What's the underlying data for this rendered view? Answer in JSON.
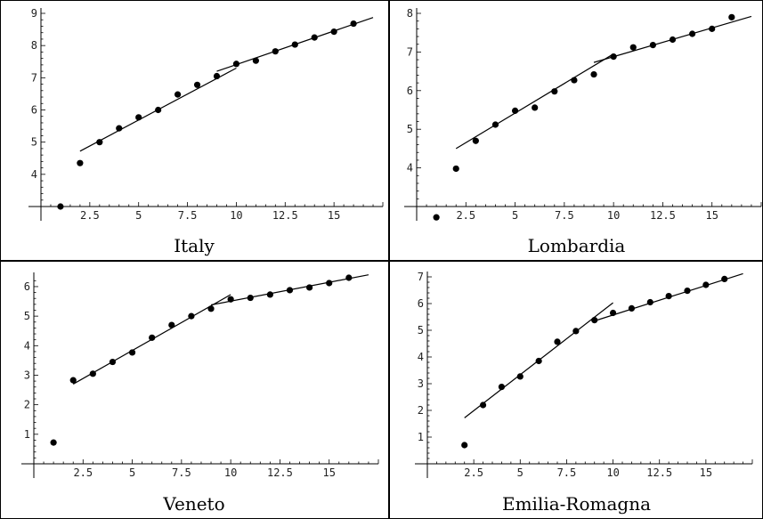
{
  "chart_data": [
    {
      "type": "scatter",
      "title": "Italy",
      "xlim": [
        0,
        17.5
      ],
      "ylim": [
        3,
        9
      ],
      "x_ticks": [
        2.5,
        5,
        7.5,
        10,
        12.5,
        15
      ],
      "x_tick_labels": [
        "2.5",
        "5",
        "7.5",
        "10",
        "12.5",
        "15"
      ],
      "y_ticks": [
        4,
        5,
        6,
        7,
        8,
        9
      ],
      "y_tick_labels": [
        "4",
        "5",
        "6",
        "7",
        "8",
        "9"
      ],
      "x_axis_crosses_at_y": 3,
      "y_axis_at_x": 0,
      "points": [
        [
          1,
          3
        ],
        [
          2,
          4.35
        ],
        [
          3,
          5.0
        ],
        [
          4,
          5.43
        ],
        [
          5,
          5.77
        ],
        [
          6,
          6.0
        ],
        [
          7,
          6.48
        ],
        [
          8,
          6.78
        ],
        [
          9,
          7.05
        ],
        [
          10,
          7.43
        ],
        [
          11,
          7.53
        ],
        [
          12,
          7.82
        ],
        [
          13,
          8.03
        ],
        [
          14,
          8.25
        ],
        [
          15,
          8.43
        ],
        [
          16,
          8.68
        ]
      ],
      "fit_lines": [
        {
          "from": [
            2,
            4.72
          ],
          "to": [
            10,
            7.3
          ]
        },
        {
          "from": [
            9,
            7.2
          ],
          "to": [
            17,
            8.87
          ]
        }
      ]
    },
    {
      "type": "scatter",
      "title": "Lombardia",
      "xlim": [
        0,
        17.5
      ],
      "ylim": [
        3,
        8
      ],
      "x_ticks": [
        2.5,
        5,
        7.5,
        10,
        12.5,
        15
      ],
      "x_tick_labels": [
        "2.5",
        "5",
        "7.5",
        "10",
        "12.5",
        "15"
      ],
      "y_ticks": [
        4,
        5,
        6,
        7,
        8
      ],
      "y_tick_labels": [
        "4",
        "5",
        "6",
        "7",
        "8"
      ],
      "x_axis_crosses_at_y": 3,
      "y_axis_at_x": 0,
      "points": [
        [
          1,
          2.72
        ],
        [
          2,
          3.98
        ],
        [
          3,
          4.7
        ],
        [
          4,
          5.12
        ],
        [
          5,
          5.48
        ],
        [
          6,
          5.56
        ],
        [
          7,
          5.98
        ],
        [
          8,
          6.27
        ],
        [
          9,
          6.42
        ],
        [
          10,
          6.88
        ],
        [
          11,
          7.12
        ],
        [
          12,
          7.18
        ],
        [
          13,
          7.32
        ],
        [
          14,
          7.47
        ],
        [
          15,
          7.6
        ],
        [
          16,
          7.9
        ]
      ],
      "fit_lines": [
        {
          "from": [
            2,
            4.5
          ],
          "to": [
            10,
            6.95
          ]
        },
        {
          "from": [
            9,
            6.73
          ],
          "to": [
            17,
            7.92
          ]
        }
      ]
    },
    {
      "type": "scatter",
      "title": "Veneto",
      "xlim": [
        0,
        17.5
      ],
      "ylim": [
        0,
        6.3
      ],
      "x_ticks": [
        2.5,
        5,
        7.5,
        10,
        12.5,
        15
      ],
      "x_tick_labels": [
        "2.5",
        "5",
        "7.5",
        "10",
        "12.5",
        "15"
      ],
      "y_ticks": [
        1,
        2,
        3,
        4,
        5,
        6
      ],
      "y_tick_labels": [
        "1",
        "2",
        "3",
        "4",
        "5",
        "6"
      ],
      "x_axis_crosses_at_y": 0,
      "y_axis_at_x": 0,
      "points": [
        [
          1,
          0.72
        ],
        [
          2,
          2.83
        ],
        [
          3,
          3.05
        ],
        [
          4,
          3.45
        ],
        [
          5,
          3.77
        ],
        [
          6,
          4.27
        ],
        [
          7,
          4.7
        ],
        [
          8,
          5.0
        ],
        [
          9,
          5.25
        ],
        [
          10,
          5.57
        ],
        [
          11,
          5.62
        ],
        [
          12,
          5.73
        ],
        [
          13,
          5.88
        ],
        [
          14,
          5.97
        ],
        [
          15,
          6.12
        ],
        [
          16,
          6.3
        ]
      ],
      "fit_lines": [
        {
          "from": [
            2,
            2.7
          ],
          "to": [
            10,
            5.73
          ]
        },
        {
          "from": [
            9,
            5.38
          ],
          "to": [
            17,
            6.4
          ]
        }
      ]
    },
    {
      "type": "scatter",
      "title": "Emilia-Romagna",
      "xlim": [
        0,
        17.5
      ],
      "ylim": [
        0,
        7
      ],
      "x_ticks": [
        2.5,
        5,
        7.5,
        10,
        12.5,
        15
      ],
      "x_tick_labels": [
        "2.5",
        "5",
        "7.5",
        "10",
        "12.5",
        "15"
      ],
      "y_ticks": [
        1,
        2,
        3,
        4,
        5,
        6,
        7
      ],
      "y_tick_labels": [
        "1",
        "2",
        "3",
        "4",
        "5",
        "6",
        "7"
      ],
      "x_axis_crosses_at_y": 0,
      "y_axis_at_x": 0,
      "points": [
        [
          2,
          0.7
        ],
        [
          3,
          2.2
        ],
        [
          4,
          2.88
        ],
        [
          5,
          3.27
        ],
        [
          6,
          3.85
        ],
        [
          7,
          4.57
        ],
        [
          8,
          4.97
        ],
        [
          9,
          5.38
        ],
        [
          10,
          5.65
        ],
        [
          11,
          5.82
        ],
        [
          12,
          6.05
        ],
        [
          13,
          6.28
        ],
        [
          14,
          6.48
        ],
        [
          15,
          6.7
        ],
        [
          16,
          6.92
        ]
      ],
      "fit_lines": [
        {
          "from": [
            2,
            1.72
          ],
          "to": [
            10,
            6.03
          ]
        },
        {
          "from": [
            9,
            5.35
          ],
          "to": [
            17,
            7.12
          ]
        }
      ]
    }
  ]
}
